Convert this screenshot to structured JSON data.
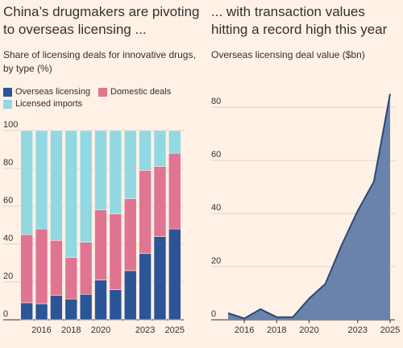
{
  "chart_data": [
    {
      "type": "stacked-bar",
      "title": "China’s drugmakers are pivoting to overseas licensing ...",
      "subtitle": "Share of licensing deals for innovative drugs, by type (%)",
      "categories": [
        null,
        "2016",
        null,
        "2018",
        null,
        "2020",
        null,
        null,
        "2023",
        null,
        "2025"
      ],
      "series": [
        {
          "name": "Overseas licensing",
          "color": "#2b5597",
          "values": [
            9,
            8.5,
            13,
            11,
            13.5,
            21,
            16,
            26,
            35,
            44,
            48
          ]
        },
        {
          "name": "Domestic deals",
          "color": "#e07591",
          "values": [
            36,
            39.5,
            29,
            22,
            27.5,
            37,
            40,
            38,
            44,
            37,
            40
          ]
        },
        {
          "name": "Licensed imports",
          "color": "#92d8e3",
          "values": [
            55,
            52,
            58,
            67,
            59,
            42,
            44,
            36,
            21,
            19,
            12
          ]
        }
      ],
      "ylim": [
        0,
        100
      ],
      "yticks": [
        0,
        20,
        40,
        60,
        80,
        100
      ],
      "grid": true,
      "legend": "top-left"
    },
    {
      "type": "area",
      "title": "... with transaction values hitting a record high this year",
      "subtitle": "Overseas licensing deal value ($bn)",
      "x": [
        2015,
        2016,
        2017,
        2018,
        2019,
        2020,
        2021,
        2022,
        2023,
        2024,
        2025
      ],
      "values": [
        2.5,
        0.5,
        4,
        1,
        1,
        8,
        13.5,
        28,
        41,
        52,
        85
      ],
      "color": "#6a83aa",
      "line_color": "#2a4878",
      "xlim": [
        2015,
        2025
      ],
      "xticks": [
        2016,
        2018,
        2020,
        2023,
        2025
      ],
      "ylim": [
        0,
        87
      ],
      "yticks": [
        0,
        20,
        40,
        60,
        80
      ],
      "grid": true
    }
  ]
}
